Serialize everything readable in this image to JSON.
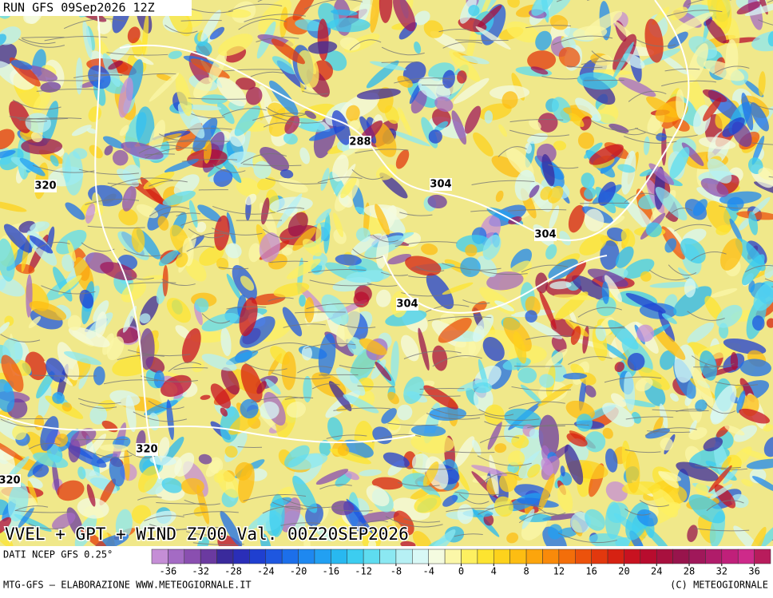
{
  "header": {
    "title": "RUN GFS 09Sep2026 12Z"
  },
  "map": {
    "contour_labels": [
      "288",
      "304",
      "304",
      "304",
      "320",
      "320",
      "320"
    ],
    "caption": "VVEL + GPT + WIND Z700 Val. 00Z20SEP2026"
  },
  "legend": {
    "source": "DATI NCEP GFS 0.25°",
    "ticks": [
      -36,
      -32,
      -28,
      -24,
      -20,
      -16,
      -12,
      -8,
      -4,
      0,
      4,
      8,
      12,
      16,
      20,
      24,
      28,
      32,
      36
    ],
    "colors": [
      "#c58ed6",
      "#a46bc4",
      "#8a4fb0",
      "#6b3aa0",
      "#3a2a9c",
      "#2a2eb8",
      "#1f3fd0",
      "#1e57e0",
      "#1c6fea",
      "#1e88f0",
      "#22a0f2",
      "#28b8f0",
      "#3ccdf0",
      "#5edcf0",
      "#8be8f2",
      "#b6f0f4",
      "#d8f8f6",
      "#f4fbe0",
      "#fbf7a8",
      "#fdf060",
      "#fde430",
      "#fdd21c",
      "#fdbd12",
      "#fca50c",
      "#f98a0a",
      "#f36e0a",
      "#ec520c",
      "#e2380e",
      "#d62212",
      "#c81220",
      "#b80c2e",
      "#a8103e",
      "#98144c",
      "#a0185a",
      "#b01c6a",
      "#c0207a",
      "#ce2a8a",
      "#b81c5c"
    ]
  },
  "footer": {
    "left": "MTG-GFS — ELABORAZIONE WWW.METEOGIORNALE.IT",
    "right": "(C) METEOGIORNALE"
  }
}
